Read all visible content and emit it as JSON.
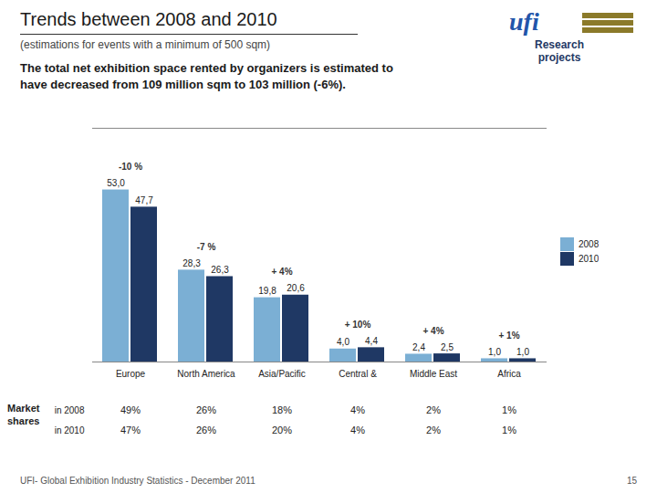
{
  "chart_data": {
    "type": "bar",
    "title": "Trends between 2008 and 2010",
    "subtitle": "(estimations for events with a minimum of 500 sqm)",
    "body": [
      "The total net exhibition space rented by organizers is estimated to",
      "have decreased from 109 million sqm to 103 million (-6%)."
    ],
    "categories": [
      "Europe",
      "North America",
      "Asia/Pacific",
      "Central &",
      "Middle East",
      "Africa"
    ],
    "series": [
      {
        "name": "2008",
        "color": "#7bafd4",
        "values": [
          53.0,
          28.3,
          19.8,
          4.0,
          2.4,
          1.0
        ],
        "value_labels": [
          "53,0",
          "28,3",
          "19,8",
          "4,0",
          "2,4",
          "1,0"
        ]
      },
      {
        "name": "2010",
        "color": "#1f3864",
        "values": [
          47.7,
          26.3,
          20.6,
          4.4,
          2.5,
          1.0
        ],
        "value_labels": [
          "47,7",
          "26,3",
          "20,6",
          "4,4",
          "2,5",
          "1,0"
        ]
      }
    ],
    "ylim": [
      0,
      72
    ],
    "tick_labels": "x",
    "grid": false,
    "data_labels": true,
    "legend": "right",
    "annotations": [
      {
        "category": "Europe",
        "text": "-10 %"
      },
      {
        "category": "North America",
        "text": "-7 %"
      },
      {
        "category": "Asia/Pacific",
        "text": "+ 4%"
      },
      {
        "category": "Central &",
        "text": "+ 10%"
      },
      {
        "category": "Middle East",
        "text": "+ 4%"
      },
      {
        "category": "Africa",
        "text": "+ 1%"
      }
    ],
    "table": {
      "label": "Market shares",
      "rows": [
        {
          "name": "in 2008",
          "values": [
            49,
            26,
            18,
            4,
            2,
            1
          ],
          "value_labels": [
            "49%",
            "26%",
            "18%",
            "4%",
            "2%",
            "1%"
          ]
        },
        {
          "name": "in 2010",
          "values": [
            47,
            26,
            20,
            4,
            2,
            1
          ],
          "value_labels": [
            "47%",
            "26%",
            "20%",
            "4%",
            "2%",
            "1%"
          ]
        }
      ]
    },
    "footer": "UFI- Global Exhibition Industry Statistics - December 2011",
    "page": "15",
    "logo": [
      "ufi",
      "Research",
      "projects"
    ]
  }
}
